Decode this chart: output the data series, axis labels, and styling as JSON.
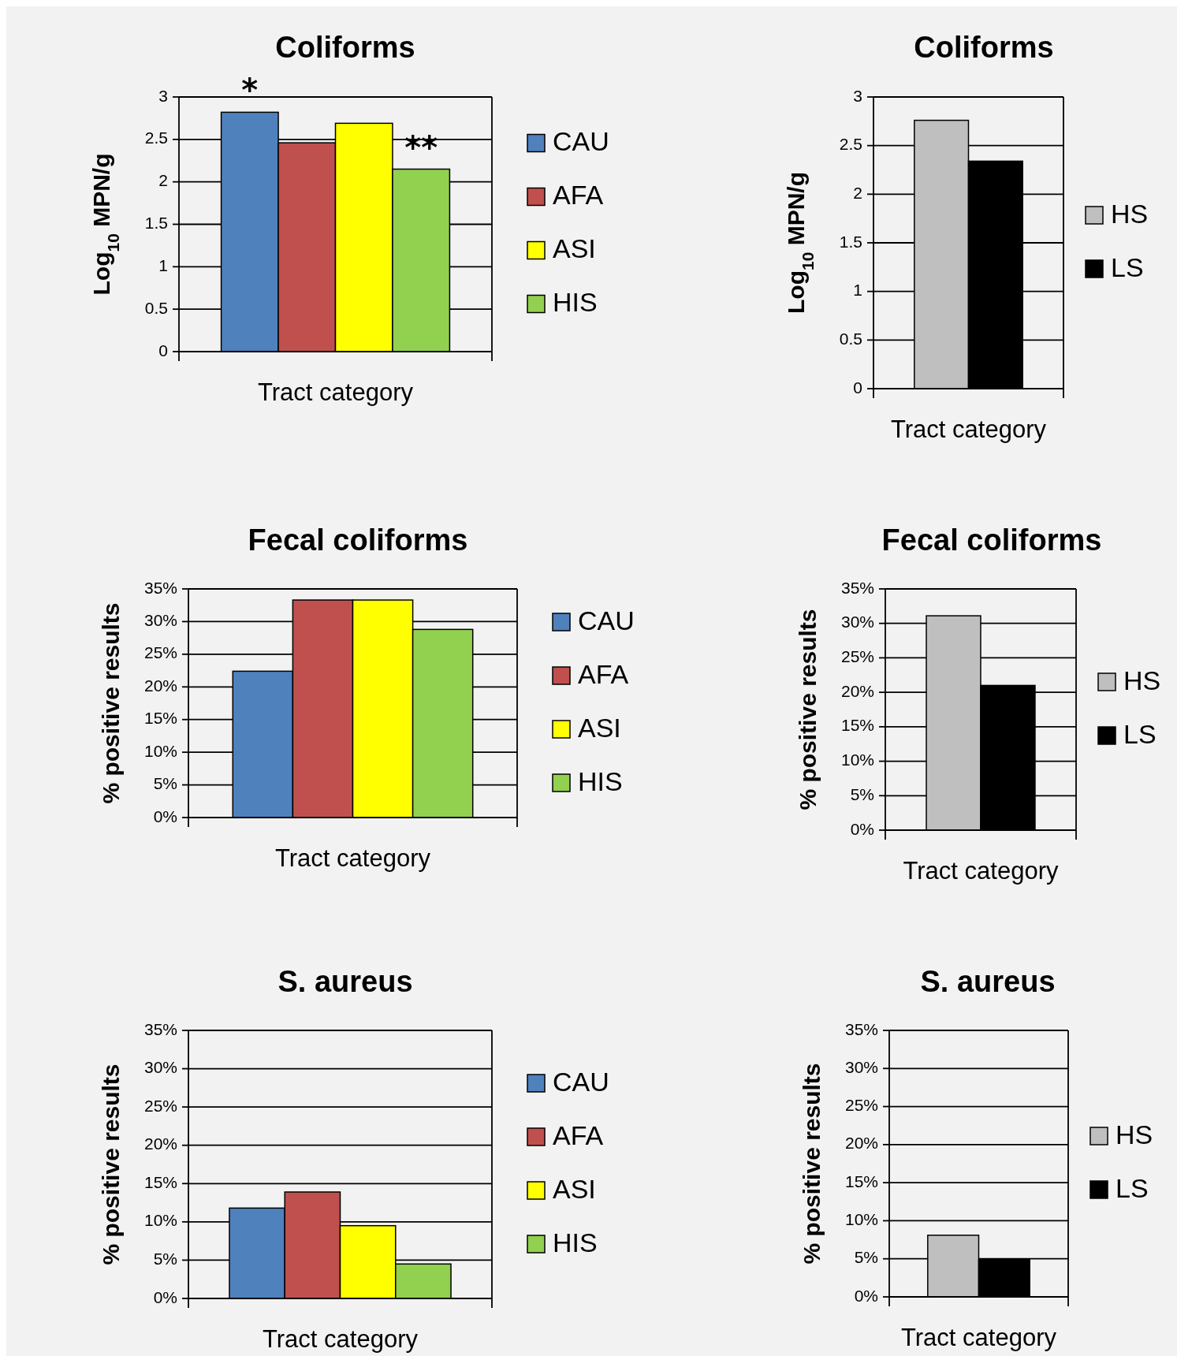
{
  "chart_data": [
    {
      "type": "bar",
      "title": "Coliforms",
      "xlabel": "Tract category",
      "ylabel": "Log$_{10}$ MPN/g",
      "categories": [
        null
      ],
      "series": [
        {
          "name": "CAU",
          "color": "#4f81bd",
          "values": [
            2.82
          ]
        },
        {
          "name": "AFA",
          "color": "#c0504d",
          "values": [
            2.46
          ]
        },
        {
          "name": "ASI",
          "color": "#ffff00",
          "values": [
            2.69
          ]
        },
        {
          "name": "HIS",
          "color": "#92d050",
          "values": [
            2.15
          ]
        }
      ],
      "ylim": [
        0,
        3
      ],
      "yticks": [
        0,
        0.5,
        1,
        1.5,
        2,
        2.5,
        3
      ],
      "grid": "y",
      "legend": "right",
      "annotations": [
        {
          "text": "*",
          "y": 2.82
        },
        {
          "text": "**",
          "y": 2.15
        }
      ]
    },
    {
      "type": "bar",
      "title": "Coliforms",
      "xlabel": "Tract category",
      "ylabel": "Log$_{10}$ MPN/g",
      "categories": [
        null
      ],
      "series": [
        {
          "name": "HS",
          "color": "#bfbfbf",
          "values": [
            2.76
          ]
        },
        {
          "name": "LS",
          "color": "#000000",
          "values": [
            2.34
          ]
        }
      ],
      "ylim": [
        0,
        3
      ],
      "yticks": [
        0,
        0.5,
        1,
        1.5,
        2,
        2.5,
        3
      ],
      "grid": "y",
      "legend": "right"
    },
    {
      "type": "bar",
      "title": "Fecal coliforms",
      "xlabel": "Tract category",
      "ylabel": "% positive results",
      "categories": [
        null
      ],
      "series": [
        {
          "name": "CAU",
          "color": "#4f81bd",
          "values": [
            22.4
          ]
        },
        {
          "name": "AFA",
          "color": "#c0504d",
          "values": [
            33.3
          ]
        },
        {
          "name": "ASI",
          "color": "#ffff00",
          "values": [
            33.3
          ]
        },
        {
          "name": "HIS",
          "color": "#92d050",
          "values": [
            28.8
          ]
        }
      ],
      "ylim": [
        0,
        35
      ],
      "yticks": [
        {
          "value": 0,
          "label": "0%"
        },
        {
          "value": 5,
          "label": "5%"
        },
        {
          "value": 10,
          "label": "10%"
        },
        {
          "value": 15,
          "label": "15%"
        },
        {
          "value": 20,
          "label": "20%"
        },
        {
          "value": 25,
          "label": "25%"
        },
        {
          "value": 30,
          "label": "30%"
        },
        {
          "value": 35,
          "label": "35%"
        }
      ],
      "grid": "y",
      "legend": "right"
    },
    {
      "type": "bar",
      "title": "Fecal coliforms",
      "xlabel": "Tract category",
      "ylabel": "% positive results",
      "categories": [
        null
      ],
      "series": [
        {
          "name": "HS",
          "color": "#bfbfbf",
          "values": [
            31.1
          ]
        },
        {
          "name": "LS",
          "color": "#000000",
          "values": [
            21.0
          ]
        }
      ],
      "ylim": [
        0,
        35
      ],
      "yticks": [
        {
          "value": 0,
          "label": "0%"
        },
        {
          "value": 5,
          "label": "5%"
        },
        {
          "value": 10,
          "label": "10%"
        },
        {
          "value": 15,
          "label": "15%"
        },
        {
          "value": 20,
          "label": "20%"
        },
        {
          "value": 25,
          "label": "25%"
        },
        {
          "value": 30,
          "label": "30%"
        },
        {
          "value": 35,
          "label": "35%"
        }
      ],
      "grid": "y",
      "legend": "right"
    },
    {
      "type": "bar",
      "title": "S. aureus",
      "xlabel": "Tract category",
      "ylabel": "% positive results",
      "categories": [
        null
      ],
      "series": [
        {
          "name": "CAU",
          "color": "#4f81bd",
          "values": [
            11.8
          ]
        },
        {
          "name": "AFA",
          "color": "#c0504d",
          "values": [
            13.9
          ]
        },
        {
          "name": "ASI",
          "color": "#ffff00",
          "values": [
            9.5
          ]
        },
        {
          "name": "HIS",
          "color": "#92d050",
          "values": [
            4.5
          ]
        }
      ],
      "ylim": [
        0,
        35
      ],
      "yticks": [
        {
          "value": 0,
          "label": "0%"
        },
        {
          "value": 5,
          "label": "5%"
        },
        {
          "value": 10,
          "label": "10%"
        },
        {
          "value": 15,
          "label": "15%"
        },
        {
          "value": 20,
          "label": "20%"
        },
        {
          "value": 25,
          "label": "25%"
        },
        {
          "value": 30,
          "label": "30%"
        },
        {
          "value": 35,
          "label": "35%"
        }
      ],
      "grid": "y",
      "legend": "right"
    },
    {
      "type": "bar",
      "title": "S. aureus",
      "xlabel": "Tract category",
      "ylabel": "% positive results",
      "categories": [
        null
      ],
      "series": [
        {
          "name": "HS",
          "color": "#bfbfbf",
          "values": [
            8.1
          ]
        },
        {
          "name": "LS",
          "color": "#000000",
          "values": [
            4.9
          ]
        }
      ],
      "ylim": [
        0,
        35
      ],
      "yticks": [
        {
          "value": 0,
          "label": "0%"
        },
        {
          "value": 5,
          "label": "5%"
        },
        {
          "value": 10,
          "label": "10%"
        },
        {
          "value": 15,
          "label": "15%"
        },
        {
          "value": 20,
          "label": "20%"
        },
        {
          "value": 25,
          "label": "25%"
        },
        {
          "value": 30,
          "label": "30%"
        },
        {
          "value": 35,
          "label": "35%"
        }
      ],
      "grid": "y",
      "legend": "right"
    }
  ]
}
